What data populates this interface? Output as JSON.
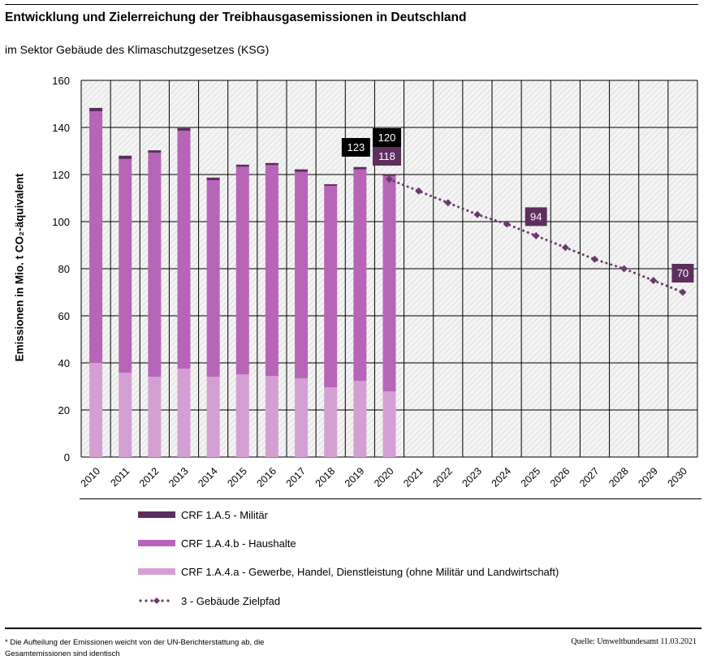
{
  "title": "Entwicklung und Zielerreichung der Treibhausgasemissionen in Deutschland",
  "subtitle": "im Sektor Gebäude des Klimaschutzgesetzes (KSG)",
  "footnote": "* Die Aufteilung der Emissionen weicht von der UN-Berichterstattung ab, die Gesamtemissionen sind identisch",
  "source": "Quelle: Umweltbundesamt  11.03.2021",
  "chart_data": {
    "type": "bar",
    "stacked": true,
    "ylabel": "Emissionen in Mio. t CO₂-äquivalent",
    "ylim": [
      0,
      160
    ],
    "yticks": [
      0,
      20,
      40,
      60,
      80,
      100,
      120,
      140,
      160
    ],
    "grid": true,
    "background": "hatched",
    "legend_placement": "bottom",
    "categories": [
      "2010",
      "2011",
      "2012",
      "2013",
      "2014",
      "2015",
      "2016",
      "2017",
      "2018",
      "2019",
      "2020",
      "2021",
      "2022",
      "2023",
      "2024",
      "2025",
      "2026",
      "2027",
      "2028",
      "2029",
      "2030"
    ],
    "series": [
      {
        "name": "CRF 1.A.4.a - Gewerbe, Handel, Dienstleistung (ohne Militär und Landwirtschaft)",
        "color": "#d4a0d4",
        "values": [
          40.0,
          35.8,
          34.1,
          37.5,
          34.1,
          35.1,
          34.4,
          33.4,
          29.6,
          32.3,
          27.9,
          null,
          null,
          null,
          null,
          null,
          null,
          null,
          null,
          null,
          null
        ]
      },
      {
        "name": "CRF 1.A.4.b - Haushalte",
        "color": "#b865b8",
        "values": [
          106.9,
          90.8,
          95.2,
          101.1,
          83.5,
          88.2,
          89.6,
          87.8,
          85.6,
          89.9,
          91.5,
          null,
          null,
          null,
          null,
          null,
          null,
          null,
          null,
          null,
          null
        ]
      },
      {
        "name": "CRF 1.A.5 - Militär",
        "color": "#5c2d5e",
        "values": [
          1.4,
          1.4,
          1.0,
          1.1,
          1.1,
          0.9,
          0.9,
          1.0,
          0.7,
          1.0,
          0.6,
          null,
          null,
          null,
          null,
          null,
          null,
          null,
          null,
          null,
          null
        ]
      }
    ],
    "line_series": {
      "name": "3 - Gebäude Zielpfad",
      "color": "#6b3a6b",
      "style": "dotted-diamond",
      "values": [
        null,
        null,
        null,
        null,
        null,
        null,
        null,
        null,
        null,
        null,
        118,
        113,
        108,
        103,
        99,
        94,
        89,
        84,
        80,
        75,
        70
      ]
    },
    "annotations": [
      {
        "category": "2019",
        "text": "123",
        "style": "black"
      },
      {
        "category": "2020",
        "text": "120",
        "style": "black"
      },
      {
        "category": "2020",
        "text": "118",
        "style": "purple"
      },
      {
        "category": "2025",
        "text": "94",
        "style": "purple"
      },
      {
        "category": "2030",
        "text": "70",
        "style": "purple"
      }
    ]
  },
  "legend": [
    {
      "label": "CRF 1.A.5 - Militär",
      "color": "#5c2d5e"
    },
    {
      "label": "CRF 1.A.4.b - Haushalte",
      "color": "#b865b8"
    },
    {
      "label": "CRF 1.A.4.a - Gewerbe, Handel, Dienstleistung (ohne Militär und Landwirtschaft)",
      "color": "#d4a0d4"
    },
    {
      "label": "3 - Gebäude Zielpfad",
      "color": "#6b3a6b"
    }
  ]
}
